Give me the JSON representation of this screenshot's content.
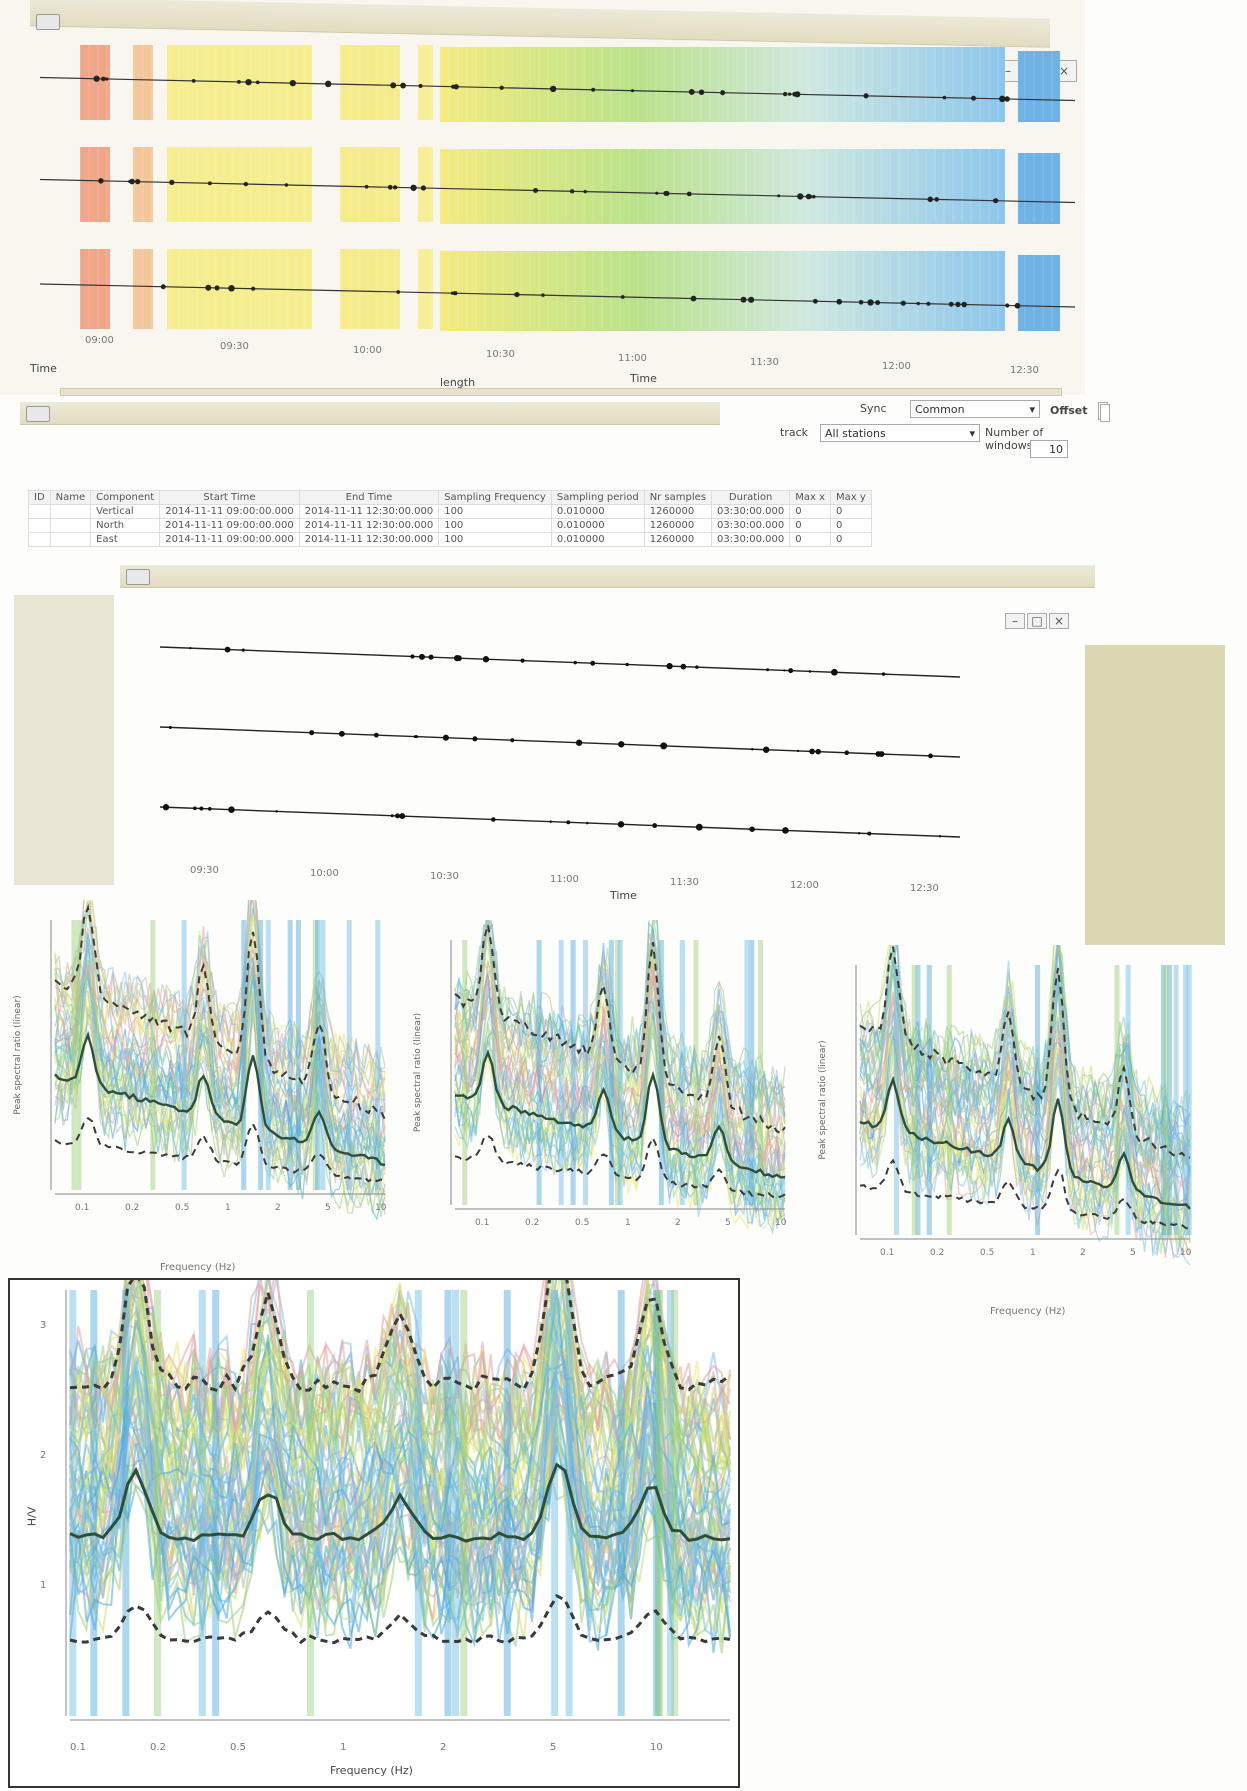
{
  "spectrogram_window": {
    "time_label": "Time",
    "length_label": "length",
    "center_time_label": "Time",
    "x_ticks": [
      "09:00",
      "09:30",
      "10:00",
      "10:30",
      "11:00",
      "11:30",
      "12:00",
      "12:30"
    ],
    "bands": [
      {
        "color": "#ee9d7c"
      },
      {
        "color": "#f2c28f"
      },
      {
        "color": "#f5ec83"
      },
      {
        "color": "#f4ea80"
      },
      {
        "color": "#f6ed8c"
      },
      {
        "color": "#c8e58a"
      },
      {
        "color": "#a8dd8a"
      },
      {
        "color": "#9ccfe8"
      },
      {
        "color": "#6fb2e6"
      }
    ]
  },
  "controls": {
    "sync_label": "Sync",
    "sync_value": "Common",
    "offset_label": "Offset",
    "offset_value": "No",
    "track_label": "track",
    "track_value": "All stations",
    "num_windows_label": "Number of windows",
    "num_windows_value": "10"
  },
  "metadata_table": {
    "headers": [
      "ID",
      "Name",
      "Component",
      "Start Time",
      "End Time",
      "Sampling Frequency",
      "Sampling period",
      "Nr samples",
      "Duration",
      "Max x",
      "Max y"
    ],
    "rows": [
      [
        "",
        "",
        "Vertical",
        "2014-11-11 09:00:00.000",
        "2014-11-11 12:30:00.000",
        "100",
        "0.010000",
        "1260000",
        "03:30:00.000",
        "0",
        "0"
      ],
      [
        "",
        "",
        "North",
        "2014-11-11 09:00:00.000",
        "2014-11-11 12:30:00.000",
        "100",
        "0.010000",
        "1260000",
        "03:30:00.000",
        "0",
        "0"
      ],
      [
        "",
        "",
        "East",
        "2014-11-11 09:00:00.000",
        "2014-11-11 12:30:00.000",
        "100",
        "0.010000",
        "1260000",
        "03:30:00.000",
        "0",
        "0"
      ]
    ]
  },
  "waveform_window": {
    "x_ticks": [
      "09:30",
      "10:00",
      "10:30",
      "11:00",
      "11:30",
      "12:00",
      "12:30"
    ],
    "x_label": "Time"
  },
  "hvsr_panels": {
    "y_label": "Peak spectral ratio (linear)",
    "x_label": "Frequency (Hz)",
    "x_ticks": [
      "0.1",
      "0.2",
      "0.5",
      "1",
      "2",
      "5",
      "10"
    ]
  },
  "big_panel": {
    "y_label": "H/V",
    "x_label": "Frequency (Hz)",
    "y_ticks": [
      "3",
      "2",
      "1"
    ],
    "x_ticks": [
      "0.1",
      "0.2",
      "0.5",
      "1",
      "2",
      "5",
      "10"
    ]
  }
}
